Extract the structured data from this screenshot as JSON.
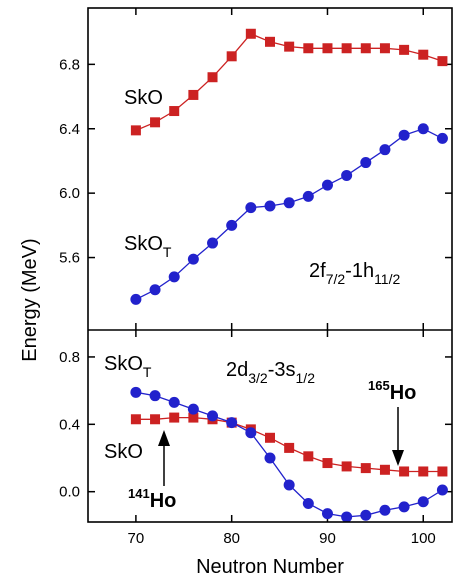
{
  "chart_data": [
    {
      "panel": "top",
      "type": "line",
      "xlim": [
        65,
        103
      ],
      "ylim": [
        5.15,
        7.15
      ],
      "yticks": [
        "5.6",
        "6.0",
        "6.4",
        "6.8"
      ],
      "ytick_values": [
        5.6,
        6.0,
        6.4,
        6.8
      ],
      "annotations": {
        "sko": "SkO",
        "skot_main": "SkO",
        "skot_sub": "T",
        "orbital_a": "2f",
        "orbital_a_sub": "7/2",
        "orbital_b": "-1h",
        "orbital_b_sub": "11/2"
      },
      "series": [
        {
          "name": "SkO",
          "color": "#cc2222",
          "marker": "square",
          "x": [
            70,
            72,
            74,
            76,
            78,
            80,
            82,
            84,
            86,
            88,
            90,
            92,
            94,
            96,
            98,
            100,
            102
          ],
          "y": [
            6.39,
            6.44,
            6.51,
            6.61,
            6.72,
            6.85,
            6.99,
            6.94,
            6.91,
            6.9,
            6.9,
            6.9,
            6.9,
            6.9,
            6.89,
            6.86,
            6.82
          ]
        },
        {
          "name": "SkO_T",
          "color": "#2222cc",
          "marker": "circle",
          "x": [
            70,
            72,
            74,
            76,
            78,
            80,
            82,
            84,
            86,
            88,
            90,
            92,
            94,
            96,
            98,
            100,
            102
          ],
          "y": [
            5.34,
            5.4,
            5.48,
            5.59,
            5.69,
            5.8,
            5.91,
            5.92,
            5.94,
            5.98,
            6.05,
            6.11,
            6.19,
            6.27,
            6.36,
            6.4,
            6.34
          ]
        }
      ]
    },
    {
      "panel": "bottom",
      "type": "line",
      "xlim": [
        65,
        103
      ],
      "ylim": [
        -0.18,
        0.96
      ],
      "yticks": [
        "0.0",
        "0.4",
        "0.8"
      ],
      "ytick_values": [
        0.0,
        0.4,
        0.8
      ],
      "xticks": [
        "70",
        "80",
        "90",
        "100"
      ],
      "xtick_values": [
        70,
        80,
        90,
        100
      ],
      "xlabel": "Neutron Number",
      "ylabel": "Energy (MeV)",
      "annotations": {
        "skot_main": "SkO",
        "skot_sub": "T",
        "sko": "SkO",
        "orbital_a": "2d",
        "orbital_a_sub": "3/2",
        "orbital_b": "-3s",
        "orbital_b_sub": "1/2",
        "ho165_mass": "165",
        "ho165_el": "Ho",
        "ho141_mass": "141",
        "ho141_el": "Ho"
      },
      "series": [
        {
          "name": "SkO",
          "color": "#cc2222",
          "marker": "square",
          "x": [
            70,
            72,
            74,
            76,
            78,
            80,
            82,
            84,
            86,
            88,
            90,
            92,
            94,
            96,
            98,
            100,
            102
          ],
          "y": [
            0.43,
            0.43,
            0.44,
            0.44,
            0.43,
            0.41,
            0.37,
            0.32,
            0.26,
            0.21,
            0.17,
            0.15,
            0.14,
            0.13,
            0.12,
            0.12,
            0.12
          ]
        },
        {
          "name": "SkO_T",
          "color": "#2222cc",
          "marker": "circle",
          "x": [
            70,
            72,
            74,
            76,
            78,
            80,
            82,
            84,
            86,
            88,
            90,
            92,
            94,
            96,
            98,
            100,
            102
          ],
          "y": [
            0.59,
            0.57,
            0.53,
            0.49,
            0.45,
            0.41,
            0.35,
            0.2,
            0.04,
            -0.07,
            -0.13,
            -0.15,
            -0.14,
            -0.11,
            -0.09,
            -0.06,
            0.01
          ]
        }
      ]
    }
  ]
}
